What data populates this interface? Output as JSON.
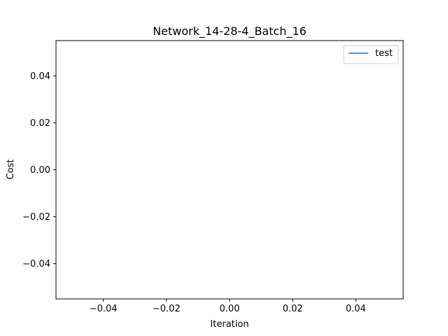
{
  "chart_data": {
    "type": "line",
    "title": "Network_14-28-4_Batch_16",
    "xlabel": "Iteration",
    "ylabel": "Cost",
    "xlim": [
      -0.055,
      0.055
    ],
    "ylim": [
      -0.055,
      0.055
    ],
    "x_ticks": [
      -0.04,
      -0.02,
      0.0,
      0.02,
      0.04
    ],
    "y_ticks": [
      -0.04,
      -0.02,
      0.0,
      0.02,
      0.04
    ],
    "x_tick_labels": [
      "−0.04",
      "−0.02",
      "0.00",
      "0.02",
      "0.04"
    ],
    "y_tick_labels": [
      "−0.04",
      "−0.02",
      "0.00",
      "0.02",
      "0.04"
    ],
    "grid": false,
    "legend_position": "top-right",
    "series": [
      {
        "name": "test",
        "color": "#1f77b4",
        "x": [],
        "y": []
      }
    ]
  }
}
